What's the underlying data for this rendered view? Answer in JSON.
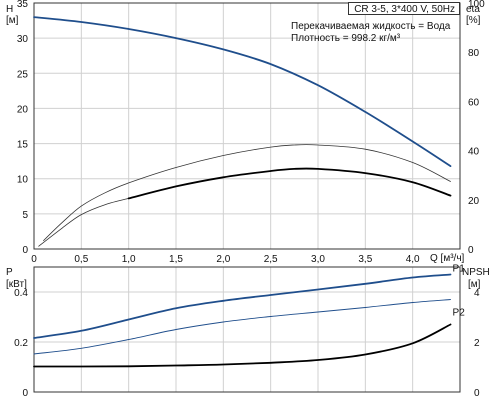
{
  "header": {
    "pump": "CR 3-5, 3*400 V, 50Hz",
    "note_liquid": "Перекачиваемая жидкость = Вода",
    "note_density": "Плотность = 998.2 кг/м³"
  },
  "colors": {
    "head_curve": "#1f4e8c",
    "eff_curve_thin": "#333333",
    "npsh_curve": "#000000",
    "p1_curve": "#1f4e8c",
    "p2_curve": "#1f4e8c",
    "grid": "#d0d0d0"
  },
  "chart_data": [
    {
      "type": "line",
      "title": "",
      "xlabel": "Q [м³/ч]",
      "x_unit_label": "Q [м³/ч]",
      "xlim": [
        0,
        4.5
      ],
      "x_ticks": [
        0,
        0.5,
        1.0,
        1.5,
        2.0,
        2.5,
        3.0,
        3.5,
        4.0
      ],
      "x_tick_labels": [
        "0",
        "0,5",
        "1,0",
        "1,5",
        "2,0",
        "2,5",
        "3,0",
        "3,5",
        "4,0"
      ],
      "left_axis": {
        "label_top": "H",
        "label_unit": "[м]",
        "ylim": [
          0,
          35
        ],
        "ticks": [
          0,
          5,
          10,
          15,
          20,
          25,
          30,
          35
        ]
      },
      "right_axis": {
        "label_top": "eta",
        "label_unit": "[%]",
        "ylim": [
          0,
          100
        ],
        "ticks": [
          0,
          20,
          40,
          60,
          80,
          100
        ]
      },
      "grid": true,
      "series": [
        {
          "key": "head",
          "axis": "left",
          "style": "thick-blue",
          "x": [
            0,
            0.5,
            1.0,
            1.5,
            2.0,
            2.5,
            3.0,
            3.5,
            4.0,
            4.4
          ],
          "y": [
            33,
            32.3,
            31.3,
            30.0,
            28.4,
            26.3,
            23.3,
            19.5,
            15.3,
            11.8
          ]
        },
        {
          "key": "eta_thin",
          "axis": "left",
          "style": "thin-black",
          "x": [
            0.1,
            0.3,
            0.5,
            0.75,
            1.0,
            1.5,
            2.0,
            2.5,
            2.75,
            3.0,
            3.5,
            4.0,
            4.4
          ],
          "y": [
            1.2,
            3.8,
            6.1,
            8.0,
            9.4,
            11.6,
            13.3,
            14.5,
            14.8,
            14.8,
            14.2,
            12.3,
            9.6
          ]
        },
        {
          "key": "eta_lower_thin",
          "axis": "left",
          "style": "thin-black",
          "x": [
            0.05,
            0.3,
            0.5,
            0.75,
            1.0
          ],
          "y": [
            0.4,
            3.0,
            4.9,
            6.3,
            7.2
          ]
        },
        {
          "key": "eta",
          "axis": "left",
          "style": "thick-black",
          "x": [
            1.0,
            1.5,
            2.0,
            2.5,
            2.75,
            3.0,
            3.5,
            4.0,
            4.4
          ],
          "y": [
            7.2,
            8.9,
            10.2,
            11.1,
            11.4,
            11.4,
            10.8,
            9.5,
            7.6
          ]
        }
      ]
    },
    {
      "type": "line",
      "title": "",
      "xlim": [
        0,
        4.5
      ],
      "left_axis": {
        "label_top": "P",
        "label_unit": "[кВт]",
        "ylim": [
          0,
          0.5
        ],
        "ticks": [
          0,
          0.2,
          0.4
        ],
        "tick_labels": [
          "0",
          "0.2",
          "0.4"
        ]
      },
      "right_axis": {
        "label_top": "NPSH",
        "label_unit": "[м]",
        "ylim": [
          0,
          5
        ],
        "ticks": [
          0,
          2,
          4
        ],
        "tick_labels": [
          "0",
          "2",
          "4"
        ]
      },
      "grid": true,
      "series": [
        {
          "name": "P1",
          "key": "p1",
          "axis": "left",
          "style": "thick-blue",
          "x": [
            0,
            0.5,
            1.0,
            1.5,
            2.0,
            2.5,
            3.0,
            3.5,
            4.0,
            4.4
          ],
          "y": [
            0.216,
            0.245,
            0.29,
            0.335,
            0.365,
            0.388,
            0.41,
            0.433,
            0.458,
            0.47
          ]
        },
        {
          "name": "P2",
          "key": "p2",
          "axis": "left",
          "style": "thin-blue",
          "x": [
            0,
            0.5,
            1.0,
            1.5,
            2.0,
            2.5,
            3.0,
            3.5,
            4.0,
            4.4
          ],
          "y": [
            0.152,
            0.175,
            0.21,
            0.25,
            0.28,
            0.302,
            0.32,
            0.338,
            0.358,
            0.37
          ]
        },
        {
          "key": "npsh",
          "axis": "right",
          "style": "thick-black",
          "x": [
            0,
            0.5,
            1.0,
            1.5,
            2.0,
            2.5,
            3.0,
            3.5,
            4.0,
            4.4
          ],
          "y": [
            1.02,
            1.02,
            1.03,
            1.06,
            1.1,
            1.17,
            1.28,
            1.5,
            1.95,
            2.7
          ]
        }
      ]
    }
  ]
}
